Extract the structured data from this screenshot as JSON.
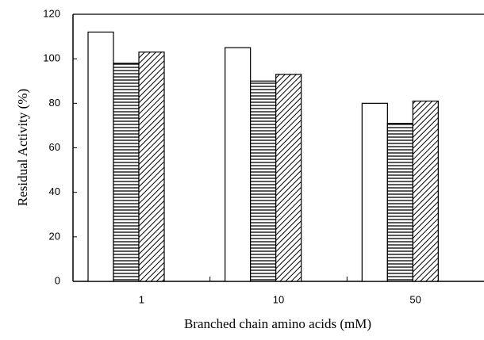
{
  "chart_data": {
    "type": "bar",
    "x_label": "Branched chain amino acids (mM)",
    "y_label": "Residual Activity (%)",
    "categories": [
      "1",
      "10",
      "50"
    ],
    "series": [
      {
        "color": "#ffffff",
        "pattern": "none",
        "values": [
          112,
          105,
          80
        ]
      },
      {
        "color": "#ffffff",
        "pattern": "horizontal",
        "values": [
          98,
          90,
          71
        ]
      },
      {
        "color": "#ffffff",
        "pattern": "diagonal",
        "values": [
          103,
          93,
          81
        ]
      }
    ],
    "ylim": [
      0,
      120
    ],
    "yticks": [
      0,
      20,
      40,
      60,
      80,
      100,
      120
    ]
  }
}
